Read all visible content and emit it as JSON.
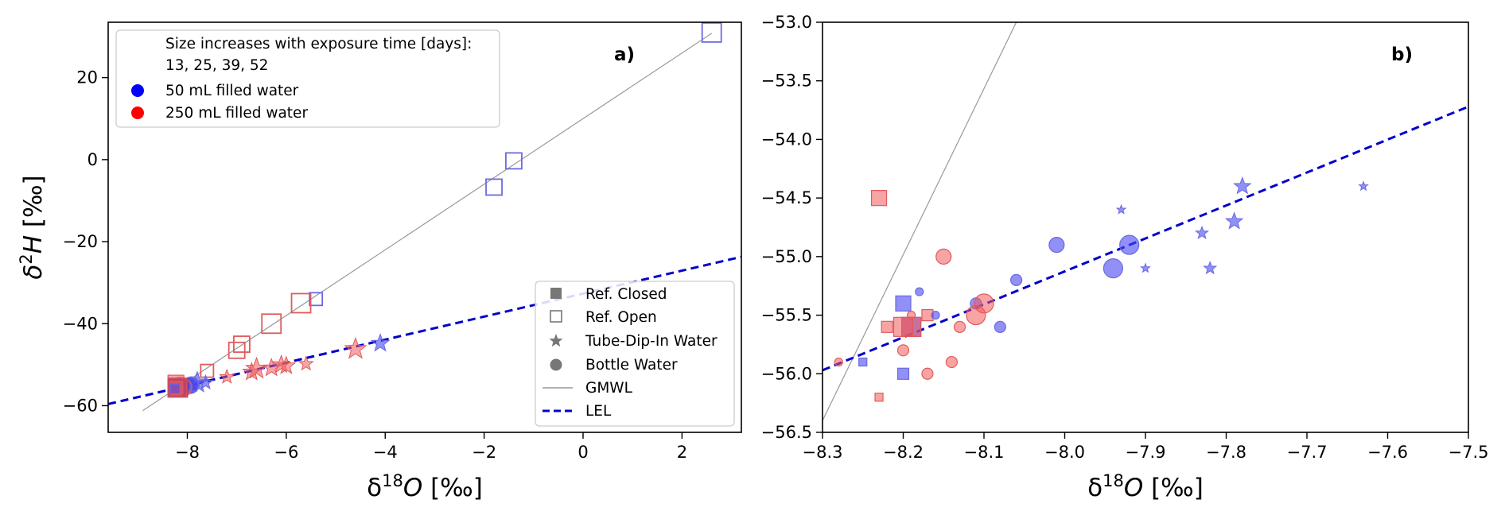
{
  "chart_data": [
    {
      "panel": "a)",
      "type": "scatter",
      "xlabel": "δ18O [‰]",
      "ylabel": "δ2H [‰]",
      "xlim": [
        -9.6,
        3.2
      ],
      "ylim": [
        -66.5,
        33.5
      ],
      "xticks": [
        -8,
        -6,
        -4,
        -2,
        0,
        2
      ],
      "yticks": [
        -60,
        -40,
        -20,
        0,
        20
      ],
      "grid": false,
      "legend_info": {
        "placement": "top-left",
        "lines": [
          "Size increases with exposure time [days]:",
          "13, 25, 39, 52"
        ],
        "entries": [
          {
            "label": "50 mL filled water",
            "color": "#0000ff"
          },
          {
            "label": "250 mL filled water",
            "color": "#ff0000"
          }
        ]
      },
      "legend_markers": {
        "placement": "bottom-right",
        "entries": [
          {
            "label": "Ref. Closed",
            "symbol": "filled-square"
          },
          {
            "label": "Ref. Open",
            "symbol": "open-square"
          },
          {
            "label": "Tube-Dip-In Water",
            "symbol": "star"
          },
          {
            "label": "Bottle Water",
            "symbol": "circle"
          },
          {
            "label": "GMWL",
            "symbol": "solid-line"
          },
          {
            "label": "LEL",
            "symbol": "dashed-line"
          }
        ]
      },
      "lines": [
        {
          "name": "GMWL",
          "style": "solid",
          "color": "#999999",
          "x": [
            -8.9,
            2.6
          ],
          "y": [
            -61.2,
            30.8
          ]
        },
        {
          "name": "LEL",
          "style": "dashed",
          "color": "#0000cc",
          "x": [
            -9.6,
            3.2
          ],
          "y": [
            -59.6,
            -23.7
          ]
        }
      ],
      "points": [
        {
          "x": 2.6,
          "y": 31,
          "m": "open-square",
          "c": "blue",
          "s": 4
        },
        {
          "x": -1.4,
          "y": -0.3,
          "m": "open-square",
          "c": "blue",
          "s": 3
        },
        {
          "x": -1.8,
          "y": -6.7,
          "m": "open-square",
          "c": "blue",
          "s": 3
        },
        {
          "x": -5.4,
          "y": -34,
          "m": "open-square",
          "c": "blue",
          "s": 2
        },
        {
          "x": -5.7,
          "y": -35,
          "m": "open-square",
          "c": "red",
          "s": 4
        },
        {
          "x": -6.3,
          "y": -40,
          "m": "open-square",
          "c": "red",
          "s": 4
        },
        {
          "x": -6.9,
          "y": -45,
          "m": "open-square",
          "c": "red",
          "s": 3
        },
        {
          "x": -7.0,
          "y": -46.5,
          "m": "open-square",
          "c": "red",
          "s": 3
        },
        {
          "x": -7.6,
          "y": -51.5,
          "m": "open-square",
          "c": "red",
          "s": 2
        },
        {
          "x": -4.1,
          "y": -44.8,
          "m": "star",
          "c": "blue",
          "s": 3
        },
        {
          "x": -4.6,
          "y": -46.2,
          "m": "star",
          "c": "red",
          "s": 4
        },
        {
          "x": -5.6,
          "y": -49.8,
          "m": "star",
          "c": "red",
          "s": 2
        },
        {
          "x": -6.0,
          "y": -50.3,
          "m": "star",
          "c": "red",
          "s": 3
        },
        {
          "x": -6.1,
          "y": -50.0,
          "m": "star",
          "c": "red",
          "s": 3
        },
        {
          "x": -6.3,
          "y": -50.8,
          "m": "star",
          "c": "red",
          "s": 3
        },
        {
          "x": -6.6,
          "y": -51.0,
          "m": "star",
          "c": "red",
          "s": 4
        },
        {
          "x": -6.7,
          "y": -51.8,
          "m": "star",
          "c": "red",
          "s": 3
        },
        {
          "x": -7.2,
          "y": -53.0,
          "m": "star",
          "c": "red",
          "s": 2
        },
        {
          "x": -7.8,
          "y": -54.4,
          "m": "star",
          "c": "blue",
          "s": 4
        },
        {
          "x": -7.9,
          "y": -55.0,
          "m": "star",
          "c": "blue",
          "s": 2
        },
        {
          "x": -7.63,
          "y": -54.4,
          "m": "star",
          "c": "blue",
          "s": 2
        },
        {
          "x": -8.0,
          "y": -54.9,
          "m": "circle",
          "c": "blue",
          "s": 2
        },
        {
          "x": -7.92,
          "y": -54.9,
          "m": "circle",
          "c": "blue",
          "s": 3
        },
        {
          "x": -7.94,
          "y": -55.1,
          "m": "circle",
          "c": "blue",
          "s": 3
        },
        {
          "x": -8.1,
          "y": -55.5,
          "m": "circle",
          "c": "red",
          "s": 4
        },
        {
          "x": -8.15,
          "y": -55.0,
          "m": "circle",
          "c": "red",
          "s": 3
        },
        {
          "x": -8.06,
          "y": -55.2,
          "m": "circle",
          "c": "blue",
          "s": 2
        },
        {
          "x": -8.23,
          "y": -54.5,
          "m": "filled-square",
          "c": "red",
          "s": 3
        },
        {
          "x": -8.2,
          "y": -55.4,
          "m": "filled-square",
          "c": "blue",
          "s": 3
        },
        {
          "x": -8.2,
          "y": -56.0,
          "m": "filled-square",
          "c": "blue",
          "s": 2
        },
        {
          "x": -8.19,
          "y": -55.6,
          "m": "filled-square",
          "c": "purple",
          "s": 4
        },
        {
          "x": -8.2,
          "y": -55.6,
          "m": "filled-square",
          "c": "red",
          "s": 4
        },
        {
          "x": -8.22,
          "y": -55.6,
          "m": "filled-square",
          "c": "red",
          "s": 2
        },
        {
          "x": -8.23,
          "y": -56.2,
          "m": "filled-square",
          "c": "red",
          "s": 1
        },
        {
          "x": -8.25,
          "y": -55.9,
          "m": "filled-square",
          "c": "blue",
          "s": 1
        }
      ]
    },
    {
      "panel": "b)",
      "type": "scatter",
      "xlabel": "δ18O [‰]",
      "ylabel": "",
      "xlim": [
        -8.3,
        -7.5
      ],
      "ylim": [
        -56.5,
        -53.0
      ],
      "xticks": [
        -8.3,
        -8.2,
        -8.1,
        -8.0,
        -7.9,
        -7.8,
        -7.7,
        -7.6,
        -7.5
      ],
      "yticks": [
        -56.5,
        -56.0,
        -55.5,
        -55.0,
        -54.5,
        -54.0,
        -53.5,
        -53.0
      ],
      "grid": false,
      "lines": [
        {
          "name": "GMWL",
          "style": "solid",
          "color": "#999999",
          "x": [
            -8.3,
            -8.06
          ],
          "y": [
            -56.4,
            -53.0
          ]
        },
        {
          "name": "LEL",
          "style": "dashed",
          "color": "#0000cc",
          "x": [
            -8.3,
            -7.5
          ],
          "y": [
            -55.97,
            -53.72
          ]
        }
      ],
      "points": [
        {
          "x": -8.23,
          "y": -54.5,
          "m": "square",
          "c": "red",
          "s": 3
        },
        {
          "x": -8.2,
          "y": -55.4,
          "m": "square",
          "c": "blue",
          "s": 3
        },
        {
          "x": -8.19,
          "y": -55.6,
          "m": "square",
          "c": "blue",
          "s": 4
        },
        {
          "x": -8.19,
          "y": -55.6,
          "m": "square",
          "c": "red",
          "s": 4
        },
        {
          "x": -8.2,
          "y": -55.6,
          "m": "square",
          "c": "red",
          "s": 4
        },
        {
          "x": -8.22,
          "y": -55.6,
          "m": "square",
          "c": "red",
          "s": 2
        },
        {
          "x": -8.17,
          "y": -55.5,
          "m": "square",
          "c": "red",
          "s": 2
        },
        {
          "x": -8.2,
          "y": -56.0,
          "m": "square",
          "c": "blue",
          "s": 2
        },
        {
          "x": -8.23,
          "y": -56.2,
          "m": "square",
          "c": "red",
          "s": 1
        },
        {
          "x": -8.25,
          "y": -55.9,
          "m": "square",
          "c": "blue",
          "s": 1
        },
        {
          "x": -8.28,
          "y": -55.9,
          "m": "circle",
          "c": "red",
          "s": 1
        },
        {
          "x": -8.18,
          "y": -55.3,
          "m": "circle",
          "c": "blue",
          "s": 1
        },
        {
          "x": -8.16,
          "y": -55.5,
          "m": "circle",
          "c": "blue",
          "s": 1
        },
        {
          "x": -8.19,
          "y": -55.5,
          "m": "circle",
          "c": "red",
          "s": 1
        },
        {
          "x": -8.2,
          "y": -55.8,
          "m": "circle",
          "c": "red",
          "s": 2
        },
        {
          "x": -8.15,
          "y": -55.0,
          "m": "circle",
          "c": "red",
          "s": 3
        },
        {
          "x": -8.17,
          "y": -56.0,
          "m": "circle",
          "c": "red",
          "s": 2
        },
        {
          "x": -8.14,
          "y": -55.9,
          "m": "circle",
          "c": "red",
          "s": 2
        },
        {
          "x": -8.13,
          "y": -55.6,
          "m": "circle",
          "c": "red",
          "s": 2
        },
        {
          "x": -8.11,
          "y": -55.4,
          "m": "circle",
          "c": "blue",
          "s": 2
        },
        {
          "x": -8.1,
          "y": -55.4,
          "m": "circle",
          "c": "red",
          "s": 4
        },
        {
          "x": -8.11,
          "y": -55.5,
          "m": "circle",
          "c": "red",
          "s": 4
        },
        {
          "x": -8.08,
          "y": -55.6,
          "m": "circle",
          "c": "blue",
          "s": 2
        },
        {
          "x": -8.06,
          "y": -55.2,
          "m": "circle",
          "c": "blue",
          "s": 2
        },
        {
          "x": -8.01,
          "y": -54.9,
          "m": "circle",
          "c": "blue",
          "s": 3
        },
        {
          "x": -7.94,
          "y": -55.1,
          "m": "circle",
          "c": "blue",
          "s": 4
        },
        {
          "x": -7.92,
          "y": -54.9,
          "m": "circle",
          "c": "blue",
          "s": 4
        },
        {
          "x": -7.93,
          "y": -54.6,
          "m": "star",
          "c": "blue",
          "s": 1
        },
        {
          "x": -7.9,
          "y": -55.1,
          "m": "star",
          "c": "blue",
          "s": 1
        },
        {
          "x": -7.83,
          "y": -54.8,
          "m": "star",
          "c": "blue",
          "s": 2
        },
        {
          "x": -7.82,
          "y": -55.1,
          "m": "star",
          "c": "blue",
          "s": 2
        },
        {
          "x": -7.79,
          "y": -54.7,
          "m": "star",
          "c": "blue",
          "s": 3
        },
        {
          "x": -7.78,
          "y": -54.4,
          "m": "star",
          "c": "blue",
          "s": 3
        },
        {
          "x": -7.63,
          "y": -54.4,
          "m": "star",
          "c": "blue",
          "s": 1
        }
      ]
    }
  ]
}
